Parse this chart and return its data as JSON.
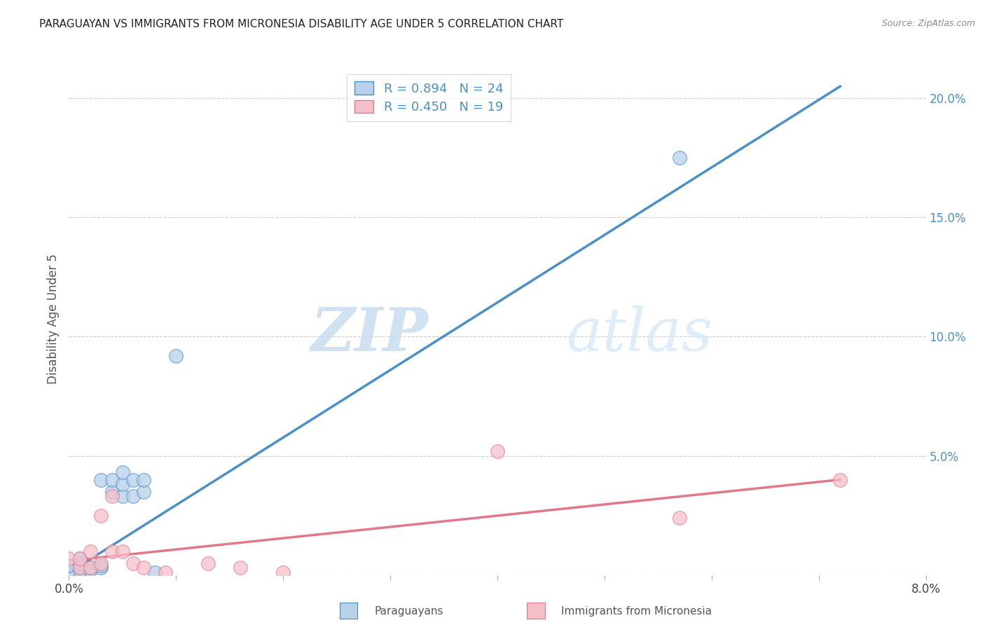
{
  "title": "PARAGUAYAN VS IMMIGRANTS FROM MICRONESIA DISABILITY AGE UNDER 5 CORRELATION CHART",
  "source": "Source: ZipAtlas.com",
  "ylabel": "Disability Age Under 5",
  "blue_label": "Paraguayans",
  "pink_label": "Immigrants from Micronesia",
  "blue_R": "0.894",
  "blue_N": "24",
  "pink_R": "0.450",
  "pink_N": "19",
  "blue_color": "#b8d0ea",
  "blue_line_color": "#4a90c4",
  "pink_color": "#f5bfca",
  "pink_line_color": "#e0788a",
  "watermark_zip": "ZIP",
  "watermark_atlas": "atlas",
  "right_yticks": [
    0.0,
    0.05,
    0.1,
    0.15,
    0.2
  ],
  "right_yticklabels": [
    "",
    "5.0%",
    "10.0%",
    "15.0%",
    "20.0%"
  ],
  "xlim": [
    0.0,
    0.08
  ],
  "ylim": [
    0.0,
    0.215
  ],
  "blue_scatter_x": [
    0.0,
    0.0,
    0.001,
    0.001,
    0.001,
    0.001,
    0.002,
    0.002,
    0.002,
    0.003,
    0.003,
    0.003,
    0.004,
    0.004,
    0.005,
    0.005,
    0.005,
    0.006,
    0.006,
    0.007,
    0.007,
    0.008,
    0.01,
    0.057
  ],
  "blue_scatter_y": [
    0.002,
    0.004,
    0.002,
    0.003,
    0.005,
    0.007,
    0.002,
    0.003,
    0.003,
    0.003,
    0.004,
    0.04,
    0.035,
    0.04,
    0.033,
    0.038,
    0.043,
    0.033,
    0.04,
    0.035,
    0.04,
    0.001,
    0.092,
    0.175
  ],
  "pink_scatter_x": [
    0.0,
    0.001,
    0.001,
    0.002,
    0.002,
    0.003,
    0.003,
    0.004,
    0.004,
    0.005,
    0.006,
    0.007,
    0.009,
    0.013,
    0.016,
    0.02,
    0.04,
    0.057,
    0.072
  ],
  "pink_scatter_y": [
    0.007,
    0.003,
    0.007,
    0.003,
    0.01,
    0.005,
    0.025,
    0.01,
    0.033,
    0.01,
    0.005,
    0.003,
    0.001,
    0.005,
    0.003,
    0.001,
    0.052,
    0.024,
    0.04
  ],
  "blue_line_x": [
    0.0,
    0.072
  ],
  "blue_line_y": [
    0.001,
    0.205
  ],
  "pink_line_x": [
    0.0,
    0.072
  ],
  "pink_line_y": [
    0.006,
    0.04
  ]
}
